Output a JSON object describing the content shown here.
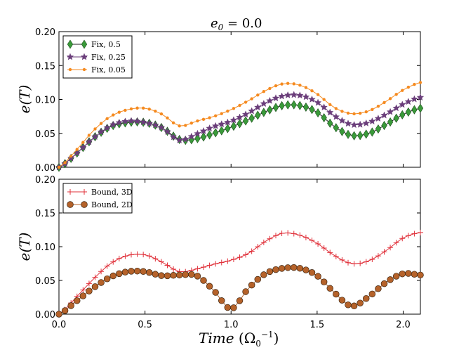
{
  "chart_data": {
    "type": "line",
    "title": "e_0 = 0.0",
    "xlabel": "Time (Ω_0^-1)",
    "xlim": [
      0.0,
      2.1
    ],
    "x_ticks": [
      "0.0",
      "0.5",
      "1.0",
      "1.5",
      "2.0"
    ],
    "x_tick_values": [
      0.0,
      0.5,
      1.0,
      1.5,
      2.0
    ],
    "panels": [
      {
        "id": "top",
        "ylabel": "e(T)",
        "ylim": [
          0.0,
          0.2
        ],
        "y_ticks": [
          "0.00",
          "0.05",
          "0.10",
          "0.15",
          "0.20"
        ],
        "y_tick_values": [
          0.0,
          0.05,
          0.1,
          0.15,
          0.2
        ],
        "legend_position": "top-left",
        "series": [
          {
            "name": "Fix, 0.5",
            "color": "#3a9a3a",
            "marker": "diamond",
            "x": [
              0.0,
              0.1,
              0.2,
              0.3,
              0.4,
              0.5,
              0.6,
              0.7,
              0.8,
              0.9,
              1.0,
              1.1,
              1.2,
              1.3,
              1.4,
              1.5,
              1.6,
              1.7,
              1.8,
              1.9,
              2.0,
              2.1
            ],
            "y": [
              0.0,
              0.02,
              0.043,
              0.06,
              0.066,
              0.066,
              0.058,
              0.041,
              0.042,
              0.05,
              0.059,
              0.07,
              0.082,
              0.091,
              0.091,
              0.081,
              0.06,
              0.047,
              0.05,
              0.063,
              0.078,
              0.087
            ]
          },
          {
            "name": "Fix, 0.25",
            "color": "#6a3d7a",
            "marker": "star",
            "x": [
              0.0,
              0.1,
              0.2,
              0.3,
              0.4,
              0.5,
              0.6,
              0.7,
              0.8,
              0.9,
              1.0,
              1.1,
              1.2,
              1.3,
              1.4,
              1.5,
              1.6,
              1.7,
              1.8,
              1.9,
              2.0,
              2.1
            ],
            "y": [
              0.0,
              0.02,
              0.043,
              0.061,
              0.068,
              0.066,
              0.058,
              0.04,
              0.049,
              0.06,
              0.068,
              0.08,
              0.095,
              0.105,
              0.106,
              0.096,
              0.076,
              0.063,
              0.066,
              0.078,
              0.093,
              0.103
            ]
          },
          {
            "name": "Fix, 0.05",
            "color": "#f58a1f",
            "marker": "point",
            "x": [
              0.0,
              0.1,
              0.2,
              0.3,
              0.4,
              0.5,
              0.6,
              0.7,
              0.8,
              0.9,
              1.0,
              1.1,
              1.2,
              1.3,
              1.4,
              1.5,
              1.6,
              1.7,
              1.8,
              1.9,
              2.0,
              2.1
            ],
            "y": [
              0.0,
              0.025,
              0.054,
              0.075,
              0.085,
              0.087,
              0.078,
              0.061,
              0.068,
              0.075,
              0.085,
              0.098,
              0.113,
              0.123,
              0.121,
              0.108,
              0.088,
              0.079,
              0.083,
              0.097,
              0.114,
              0.125
            ]
          }
        ]
      },
      {
        "id": "bottom",
        "ylabel": "e(T)",
        "ylim": [
          0.0,
          0.2
        ],
        "y_ticks": [
          "0.00",
          "0.05",
          "0.10",
          "0.15",
          "0.20"
        ],
        "y_tick_values": [
          0.0,
          0.05,
          0.1,
          0.15,
          0.2
        ],
        "legend_position": "top-left",
        "series": [
          {
            "name": "Bound, 3D",
            "color": "#e0303a",
            "marker": "plus",
            "x": [
              0.0,
              0.1,
              0.2,
              0.3,
              0.4,
              0.5,
              0.6,
              0.7,
              0.8,
              0.9,
              1.0,
              1.1,
              1.2,
              1.3,
              1.4,
              1.5,
              1.6,
              1.7,
              1.8,
              1.9,
              2.0,
              2.1
            ],
            "y": [
              0.0,
              0.025,
              0.052,
              0.075,
              0.087,
              0.088,
              0.077,
              0.063,
              0.067,
              0.074,
              0.08,
              0.09,
              0.108,
              0.12,
              0.117,
              0.105,
              0.087,
              0.075,
              0.079,
              0.094,
              0.113,
              0.121
            ]
          },
          {
            "name": "Bound, 2D",
            "color": "#b5622a",
            "marker": "circle",
            "x": [
              0.0,
              0.1,
              0.2,
              0.3,
              0.4,
              0.5,
              0.6,
              0.7,
              0.8,
              0.9,
              1.0,
              1.1,
              1.2,
              1.3,
              1.4,
              1.5,
              1.6,
              1.7,
              1.8,
              1.9,
              2.0,
              2.1
            ],
            "y": [
              0.0,
              0.019,
              0.039,
              0.055,
              0.063,
              0.063,
              0.057,
              0.058,
              0.057,
              0.035,
              0.008,
              0.038,
              0.06,
              0.068,
              0.068,
              0.057,
              0.032,
              0.012,
              0.026,
              0.047,
              0.06,
              0.058
            ]
          }
        ]
      }
    ]
  }
}
